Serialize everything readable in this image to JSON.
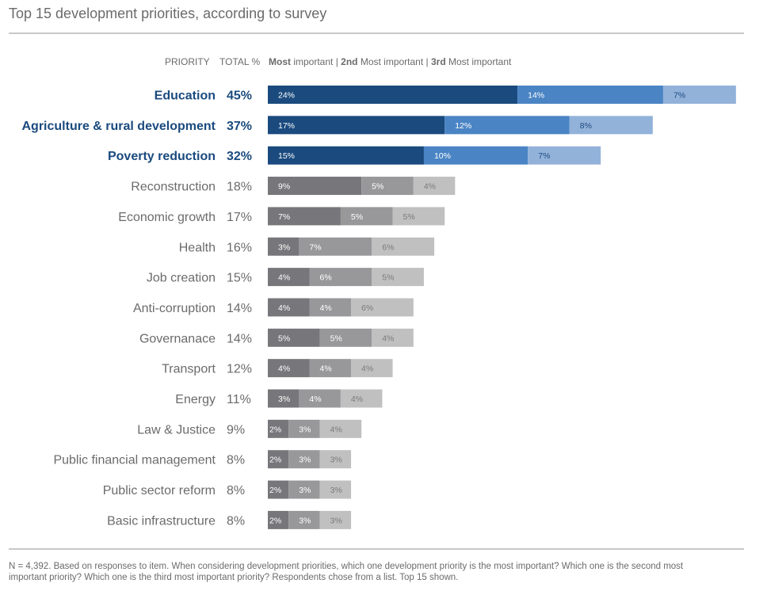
{
  "title": "Top 15 development priorities, according to survey",
  "header": {
    "priority": "PRIORITY",
    "total": "TOTAL %",
    "most_bold": "Most",
    "most_rest": " important | ",
    "second_bold": "2nd",
    "second_rest": " Most important | ",
    "third_bold": "3rd",
    "third_rest": " Most important"
  },
  "note": "N = 4,392. Based on responses to item. When considering development priorities, which one development priority is the most important? Which one is the second most important priority? Which one is the third most important priority? Respondents chose from a list. Top 15 shown.",
  "colors": {
    "highlight": [
      "#1a4a7e",
      "#4a84c4",
      "#93b2da"
    ],
    "highlight_label": "#1a4a7e",
    "normal": [
      "#77777b",
      "#98989b",
      "#c0c0c0"
    ],
    "normal_label": "#6b6b6b",
    "seg_text_dark": [
      "#ffffff",
      "#ffffff",
      "#1a4a7e"
    ],
    "seg_text_gray": [
      "#ffffff",
      "#ffffff",
      "#7a7a7a"
    ]
  },
  "chart_data": {
    "type": "bar",
    "orientation": "horizontal",
    "stacked": true,
    "categories": [
      "Education",
      "Agriculture & rural development",
      "Poverty reduction",
      "Reconstruction",
      "Economic growth",
      "Health",
      "Job creation",
      "Anti-corruption",
      "Governanace",
      "Transport",
      "Energy",
      "Law & Justice",
      "Public financial management",
      "Public sector reform",
      "Basic infrastructure"
    ],
    "totals": [
      "45%",
      "37%",
      "32%",
      "18%",
      "17%",
      "16%",
      "15%",
      "14%",
      "14%",
      "12%",
      "11%",
      "9%",
      "8%",
      "8%",
      "8%"
    ],
    "highlighted": [
      true,
      true,
      true,
      false,
      false,
      false,
      false,
      false,
      false,
      false,
      false,
      false,
      false,
      false,
      false
    ],
    "series": [
      {
        "name": "Most important",
        "values": [
          24,
          17,
          15,
          9,
          7,
          3,
          4,
          4,
          5,
          4,
          3,
          2,
          2,
          2,
          2
        ]
      },
      {
        "name": "2nd Most important",
        "values": [
          14,
          12,
          10,
          5,
          5,
          7,
          6,
          4,
          5,
          4,
          4,
          3,
          3,
          3,
          3
        ]
      },
      {
        "name": "3rd Most important",
        "values": [
          7,
          8,
          7,
          4,
          5,
          6,
          5,
          6,
          4,
          4,
          4,
          4,
          3,
          3,
          3
        ]
      }
    ],
    "value_suffix": "%",
    "xlim": [
      0,
      45
    ]
  }
}
